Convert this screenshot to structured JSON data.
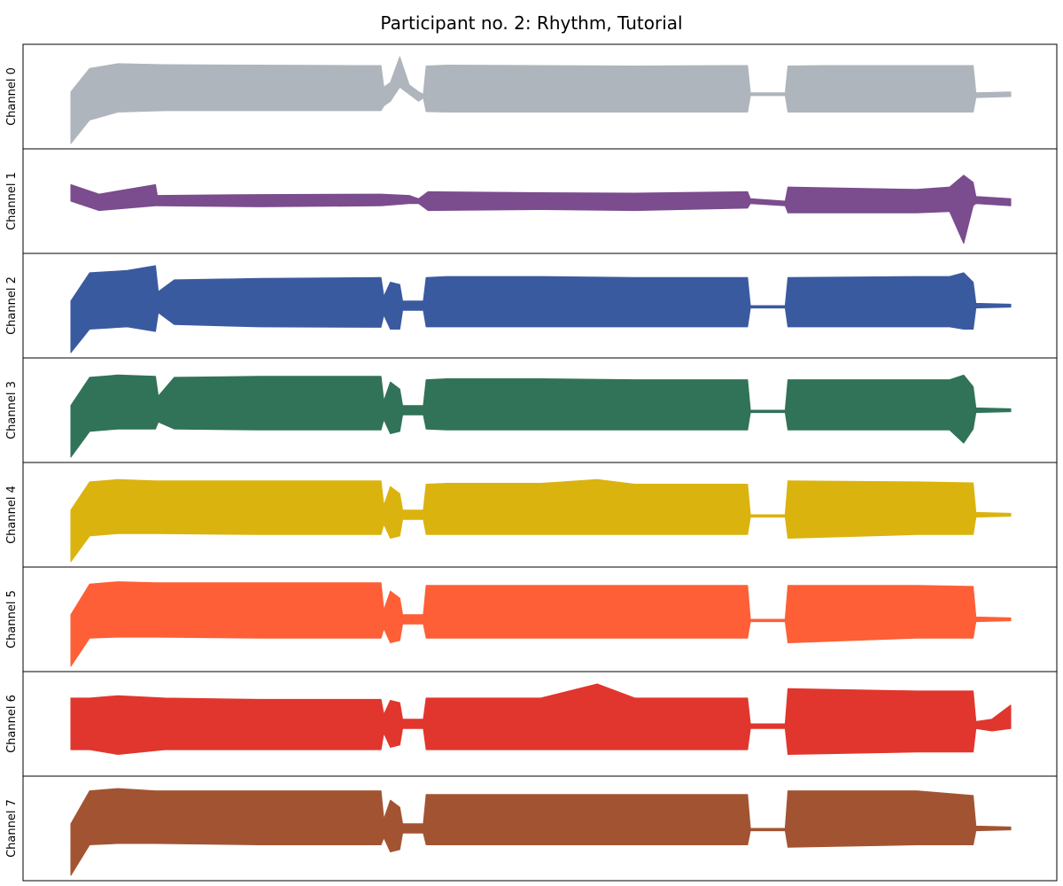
{
  "chart_data": {
    "type": "line",
    "title": "Participant no. 2: Rhythm, Tutorial",
    "xlim": [
      0,
      1
    ],
    "show_ticks": false,
    "grid": false,
    "legend": "none",
    "channels": [
      {
        "ylabel": "Channel 0",
        "color": "#afb5bc",
        "x": [
          0,
          0.02,
          0.05,
          0.1,
          0.2,
          0.3,
          0.33,
          0.333,
          0.34,
          0.35,
          0.36,
          0.37,
          0.375,
          0.378,
          0.4,
          0.5,
          0.6,
          0.7,
          0.72,
          0.723,
          0.76,
          0.763,
          0.8,
          0.9,
          0.96,
          0.963,
          1.0
        ],
        "upper": [
          0.1,
          0.6,
          0.7,
          0.68,
          0.67,
          0.66,
          0.66,
          0.2,
          0.3,
          0.85,
          0.25,
          0.1,
          0.05,
          0.65,
          0.67,
          0.66,
          0.65,
          0.66,
          0.66,
          0.08,
          0.08,
          0.65,
          0.66,
          0.66,
          0.66,
          0.08,
          0.1
        ],
        "lower": [
          -1.0,
          -0.5,
          -0.33,
          -0.3,
          -0.3,
          -0.3,
          -0.3,
          -0.2,
          -0.1,
          0.2,
          0.05,
          -0.1,
          -0.03,
          -0.32,
          -0.33,
          -0.33,
          -0.33,
          -0.33,
          -0.33,
          0.02,
          0.02,
          -0.33,
          -0.33,
          -0.33,
          -0.33,
          -0.02,
          0.0
        ]
      },
      {
        "ylabel": "Channel 1",
        "color": "#7b4c8e",
        "x": [
          0,
          0.03,
          0.09,
          0.092,
          0.2,
          0.33,
          0.36,
          0.37,
          0.38,
          0.5,
          0.6,
          0.72,
          0.723,
          0.76,
          0.763,
          0.9,
          0.935,
          0.95,
          0.96,
          0.963,
          1.0
        ],
        "upper": [
          0.35,
          0.15,
          0.35,
          0.12,
          0.14,
          0.15,
          0.12,
          0.05,
          0.2,
          0.18,
          0.17,
          0.2,
          0.05,
          0.0,
          0.3,
          0.25,
          0.3,
          0.55,
          0.4,
          0.1,
          0.05
        ],
        "lower": [
          0.0,
          -0.2,
          -0.1,
          -0.1,
          -0.12,
          -0.1,
          -0.05,
          -0.05,
          -0.2,
          -0.18,
          -0.2,
          -0.15,
          -0.05,
          -0.1,
          -0.25,
          -0.25,
          -0.22,
          -0.9,
          -0.1,
          -0.05,
          -0.1
        ]
      },
      {
        "ylabel": "Channel 2",
        "color": "#3a5aa0",
        "x": [
          0,
          0.02,
          0.06,
          0.09,
          0.093,
          0.11,
          0.2,
          0.33,
          0.333,
          0.34,
          0.35,
          0.353,
          0.375,
          0.378,
          0.4,
          0.5,
          0.6,
          0.72,
          0.723,
          0.76,
          0.763,
          0.9,
          0.935,
          0.95,
          0.96,
          0.963,
          1.0
        ],
        "upper": [
          0.1,
          0.7,
          0.75,
          0.85,
          0.3,
          0.55,
          0.58,
          0.6,
          0.2,
          0.5,
          0.45,
          0.1,
          0.1,
          0.6,
          0.62,
          0.62,
          0.6,
          0.6,
          0.0,
          0.0,
          0.6,
          0.62,
          0.62,
          0.7,
          0.5,
          0.05,
          0.03
        ],
        "lower": [
          -1.0,
          -0.5,
          -0.45,
          -0.55,
          -0.15,
          -0.4,
          -0.45,
          -0.46,
          -0.2,
          -0.5,
          -0.5,
          -0.1,
          -0.1,
          -0.45,
          -0.45,
          -0.45,
          -0.45,
          -0.45,
          -0.05,
          -0.05,
          -0.45,
          -0.45,
          -0.45,
          -0.5,
          -0.5,
          -0.05,
          -0.03
        ]
      },
      {
        "ylabel": "Channel 3",
        "color": "#307359",
        "x": [
          0,
          0.02,
          0.05,
          0.09,
          0.093,
          0.11,
          0.2,
          0.33,
          0.333,
          0.34,
          0.35,
          0.353,
          0.375,
          0.378,
          0.4,
          0.5,
          0.6,
          0.72,
          0.723,
          0.76,
          0.763,
          0.9,
          0.935,
          0.95,
          0.96,
          0.963,
          1.0
        ],
        "upper": [
          0.1,
          0.7,
          0.75,
          0.72,
          0.3,
          0.7,
          0.72,
          0.72,
          0.2,
          0.6,
          0.45,
          0.1,
          0.1,
          0.65,
          0.67,
          0.67,
          0.65,
          0.65,
          0.0,
          0.0,
          0.65,
          0.65,
          0.65,
          0.75,
          0.5,
          0.05,
          0.03
        ],
        "lower": [
          -1.0,
          -0.45,
          -0.4,
          -0.4,
          -0.25,
          -0.4,
          -0.42,
          -0.42,
          -0.2,
          -0.5,
          -0.45,
          -0.1,
          -0.1,
          -0.4,
          -0.42,
          -0.42,
          -0.42,
          -0.42,
          -0.05,
          -0.05,
          -0.42,
          -0.42,
          -0.42,
          -0.7,
          -0.4,
          -0.05,
          -0.03
        ]
      },
      {
        "ylabel": "Channel 4",
        "color": "#dbb30f",
        "x": [
          0,
          0.02,
          0.05,
          0.09,
          0.2,
          0.33,
          0.333,
          0.34,
          0.35,
          0.353,
          0.375,
          0.378,
          0.4,
          0.5,
          0.56,
          0.6,
          0.72,
          0.723,
          0.76,
          0.763,
          0.9,
          0.96,
          0.963,
          1.0
        ],
        "upper": [
          0.1,
          0.7,
          0.75,
          0.72,
          0.72,
          0.72,
          0.2,
          0.6,
          0.45,
          0.1,
          0.1,
          0.65,
          0.67,
          0.67,
          0.75,
          0.65,
          0.65,
          0.0,
          0.0,
          0.72,
          0.7,
          0.68,
          0.05,
          0.03
        ],
        "lower": [
          -1.0,
          -0.45,
          -0.4,
          -0.4,
          -0.42,
          -0.42,
          -0.2,
          -0.5,
          -0.45,
          -0.1,
          -0.1,
          -0.42,
          -0.42,
          -0.42,
          -0.42,
          -0.42,
          -0.42,
          -0.05,
          -0.05,
          -0.5,
          -0.42,
          -0.42,
          -0.05,
          -0.03
        ]
      },
      {
        "ylabel": "Channel 5",
        "color": "#fe5f36",
        "x": [
          0,
          0.02,
          0.05,
          0.09,
          0.2,
          0.33,
          0.333,
          0.34,
          0.35,
          0.353,
          0.375,
          0.378,
          0.4,
          0.5,
          0.6,
          0.72,
          0.723,
          0.76,
          0.763,
          0.9,
          0.96,
          0.963,
          1.0
        ],
        "upper": [
          0.1,
          0.75,
          0.8,
          0.78,
          0.78,
          0.78,
          0.2,
          0.6,
          0.45,
          0.1,
          0.1,
          0.72,
          0.72,
          0.72,
          0.72,
          0.72,
          0.0,
          0.0,
          0.72,
          0.72,
          0.7,
          0.05,
          0.03
        ],
        "lower": [
          -1.0,
          -0.4,
          -0.38,
          -0.38,
          -0.4,
          -0.4,
          -0.2,
          -0.5,
          -0.45,
          -0.1,
          -0.1,
          -0.4,
          -0.4,
          -0.4,
          -0.4,
          -0.4,
          -0.05,
          -0.05,
          -0.5,
          -0.4,
          -0.4,
          -0.05,
          -0.03
        ]
      },
      {
        "ylabel": "Channel 6",
        "color": "#e1362d",
        "x": [
          0,
          0.02,
          0.05,
          0.1,
          0.2,
          0.33,
          0.333,
          0.34,
          0.35,
          0.353,
          0.375,
          0.378,
          0.4,
          0.5,
          0.56,
          0.6,
          0.72,
          0.723,
          0.76,
          0.763,
          0.9,
          0.96,
          0.963,
          0.98,
          1.0
        ],
        "upper": [
          0.55,
          0.55,
          0.6,
          0.55,
          0.52,
          0.52,
          0.2,
          0.5,
          0.45,
          0.1,
          0.1,
          0.55,
          0.55,
          0.55,
          0.85,
          0.55,
          0.55,
          0.0,
          0.0,
          0.75,
          0.7,
          0.7,
          0.05,
          0.1,
          0.4
        ],
        "lower": [
          -0.55,
          -0.55,
          -0.65,
          -0.55,
          -0.55,
          -0.55,
          -0.2,
          -0.5,
          -0.45,
          -0.1,
          -0.1,
          -0.55,
          -0.55,
          -0.55,
          -0.55,
          -0.55,
          -0.55,
          -0.1,
          -0.1,
          -0.65,
          -0.6,
          -0.6,
          -0.1,
          -0.15,
          -0.1
        ]
      },
      {
        "ylabel": "Channel 7",
        "color": "#a25432",
        "x": [
          0,
          0.02,
          0.05,
          0.09,
          0.2,
          0.33,
          0.333,
          0.34,
          0.35,
          0.353,
          0.375,
          0.378,
          0.4,
          0.5,
          0.6,
          0.72,
          0.723,
          0.76,
          0.763,
          0.9,
          0.96,
          0.963,
          1.0
        ],
        "upper": [
          0.1,
          0.8,
          0.85,
          0.8,
          0.8,
          0.8,
          0.2,
          0.6,
          0.45,
          0.1,
          0.1,
          0.72,
          0.72,
          0.72,
          0.72,
          0.72,
          0.0,
          0.0,
          0.8,
          0.8,
          0.7,
          0.05,
          0.03
        ],
        "lower": [
          -1.0,
          -0.35,
          -0.32,
          -0.32,
          -0.35,
          -0.35,
          -0.2,
          -0.5,
          -0.45,
          -0.1,
          -0.1,
          -0.35,
          -0.35,
          -0.35,
          -0.35,
          -0.35,
          -0.05,
          -0.05,
          -0.4,
          -0.35,
          -0.35,
          -0.05,
          -0.03
        ]
      }
    ]
  }
}
